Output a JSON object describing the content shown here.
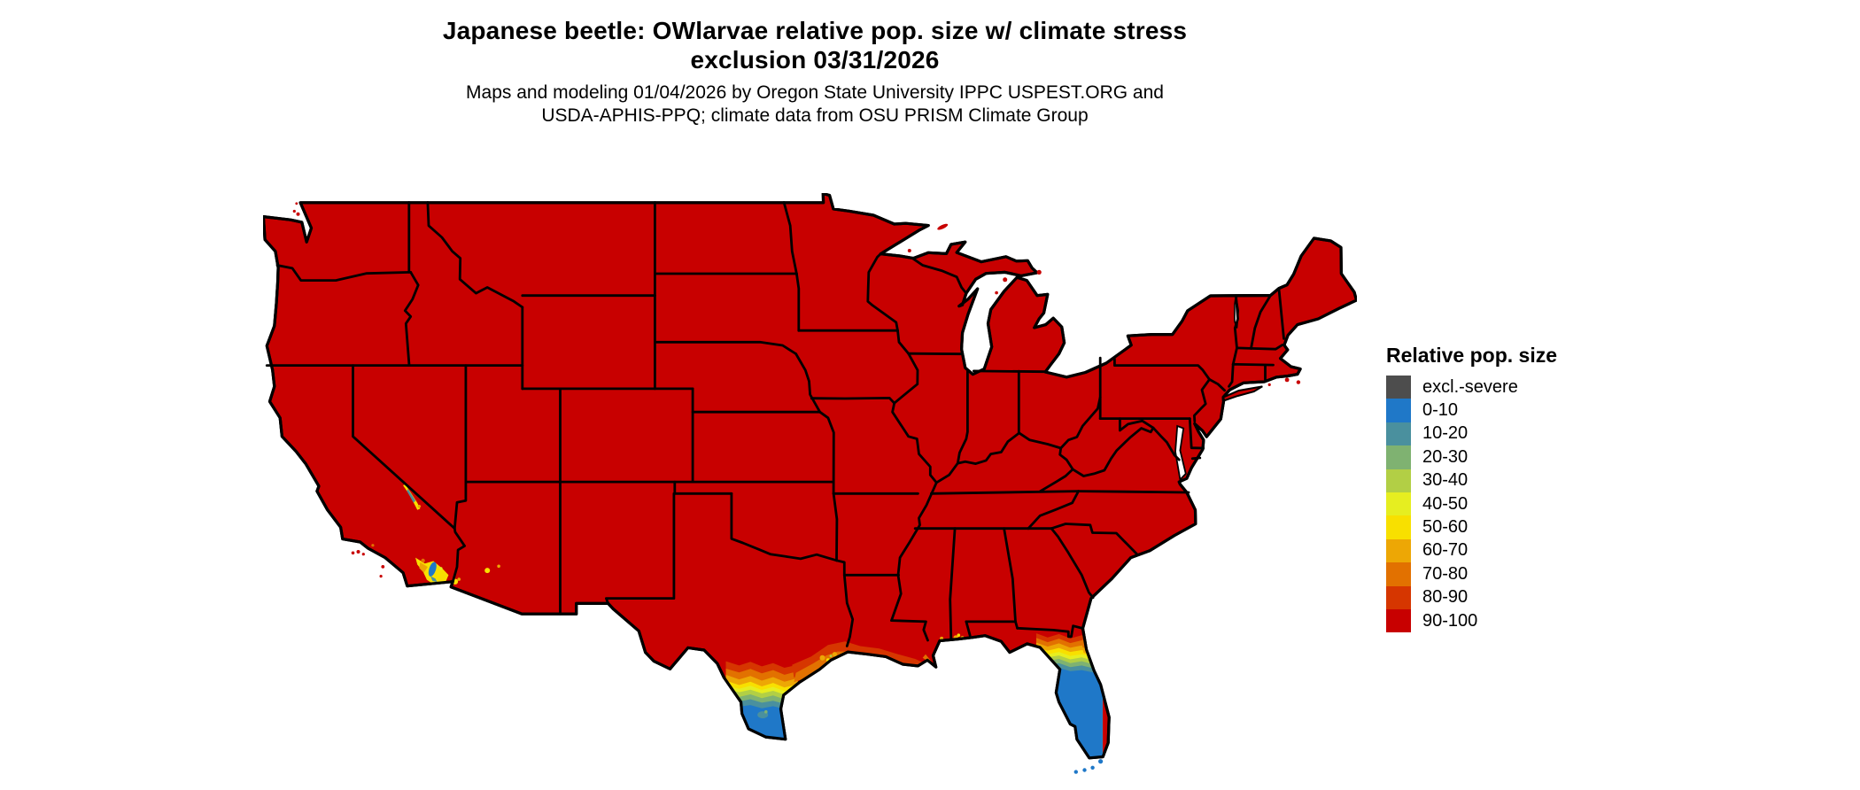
{
  "title": {
    "line1": "Japanese beetle: OWlarvae relative pop. size w/ climate stress",
    "line2": "exclusion 03/31/2026"
  },
  "subtitle": {
    "line1": "Maps and modeling 01/04/2026 by Oregon State University IPPC USPEST.ORG and",
    "line2": "USDA-APHIS-PPQ; climate data from OSU PRISM Climate Group"
  },
  "legend": {
    "title": "Relative pop. size",
    "entries": [
      {
        "label": "excl.-severe",
        "color": "#4d4d4d"
      },
      {
        "label": "0-10",
        "color": "#1f78c8"
      },
      {
        "label": "10-20",
        "color": "#4a909e"
      },
      {
        "label": "20-30",
        "color": "#7fb271"
      },
      {
        "label": "30-40",
        "color": "#b2cf45"
      },
      {
        "label": "40-50",
        "color": "#e6ee20"
      },
      {
        "label": "50-60",
        "color": "#f8e000"
      },
      {
        "label": "60-70",
        "color": "#eda705"
      },
      {
        "label": "70-80",
        "color": "#e27100"
      },
      {
        "label": "80-90",
        "color": "#d63600"
      },
      {
        "label": "90-100",
        "color": "#c80000"
      }
    ]
  },
  "chart_data": {
    "type": "heatmap",
    "subtype": "geographic-risk-map-conus",
    "title": "Japanese beetle: OWlarvae relative pop. size w/ climate stress exclusion 03/31/2026",
    "subtitle": "Maps and modeling 01/04/2026 by Oregon State University IPPC USPEST.ORG and USDA-APHIS-PPQ; climate data from OSU PRISM Climate Group",
    "legend_title": "Relative pop. size",
    "map_valid_date": "03/31/2026",
    "modeling_date": "01/04/2026",
    "organizations": [
      "Oregon State University IPPC USPEST.ORG",
      "USDA-APHIS-PPQ",
      "OSU PRISM Climate Group"
    ],
    "bins": [
      {
        "label": "excl.-severe",
        "range": "excluded - severe climate stress",
        "color": "#4d4d4d"
      },
      {
        "label": "0-10",
        "range": [
          0,
          10
        ],
        "color": "#1f78c8"
      },
      {
        "label": "10-20",
        "range": [
          10,
          20
        ],
        "color": "#4a909e"
      },
      {
        "label": "20-30",
        "range": [
          20,
          30
        ],
        "color": "#7fb271"
      },
      {
        "label": "30-40",
        "range": [
          30,
          40
        ],
        "color": "#b2cf45"
      },
      {
        "label": "40-50",
        "range": [
          40,
          50
        ],
        "color": "#e6ee20"
      },
      {
        "label": "50-60",
        "range": [
          50,
          60
        ],
        "color": "#f8e000"
      },
      {
        "label": "60-70",
        "range": [
          60,
          70
        ],
        "color": "#eda705"
      },
      {
        "label": "70-80",
        "range": [
          70,
          80
        ],
        "color": "#e27100"
      },
      {
        "label": "80-90",
        "range": [
          80,
          90
        ],
        "color": "#d63600"
      },
      {
        "label": "90-100",
        "range": [
          90,
          100
        ],
        "color": "#c80000"
      }
    ],
    "regions": [
      {
        "area": "Vast majority of contiguous US (all states' interiors)",
        "value": "90-100"
      },
      {
        "area": "South Texas tip (Rio Grande Valley, south of ~lat 27.5)",
        "value": "0-10, grading northward through 10-20, 20-30, 30-40, 40-50, 50-60, 60-70, 70-80, 80-90 wavy bands"
      },
      {
        "area": "Florida peninsula (south of ~lat 29)",
        "value": "0-10, with 10-90 transition bands across north Florida near the Georgia border"
      },
      {
        "area": "Gulf coast strip, Matagorda/Galveston TX through coastal Louisiana and Mississippi delta to Mobile Bay",
        "value": "60-90 with scattered 40-60 specks"
      },
      {
        "area": "Salton Sea / Imperial Valley CA and Yuma / lower Gila River AZ",
        "value": "patches of 40-70 with 0-10 at the Salton Sea itself and 10-20 fringe"
      },
      {
        "area": "Death Valley CA (near CA/NV border)",
        "value": "narrow 10-60 streak"
      },
      {
        "area": "Florida Keys",
        "value": "0-10"
      },
      {
        "area": "Great Lakes, oceans, Canada, Mexico",
        "value": "no data (white background)"
      }
    ],
    "grid": false,
    "legend_position": "right"
  }
}
